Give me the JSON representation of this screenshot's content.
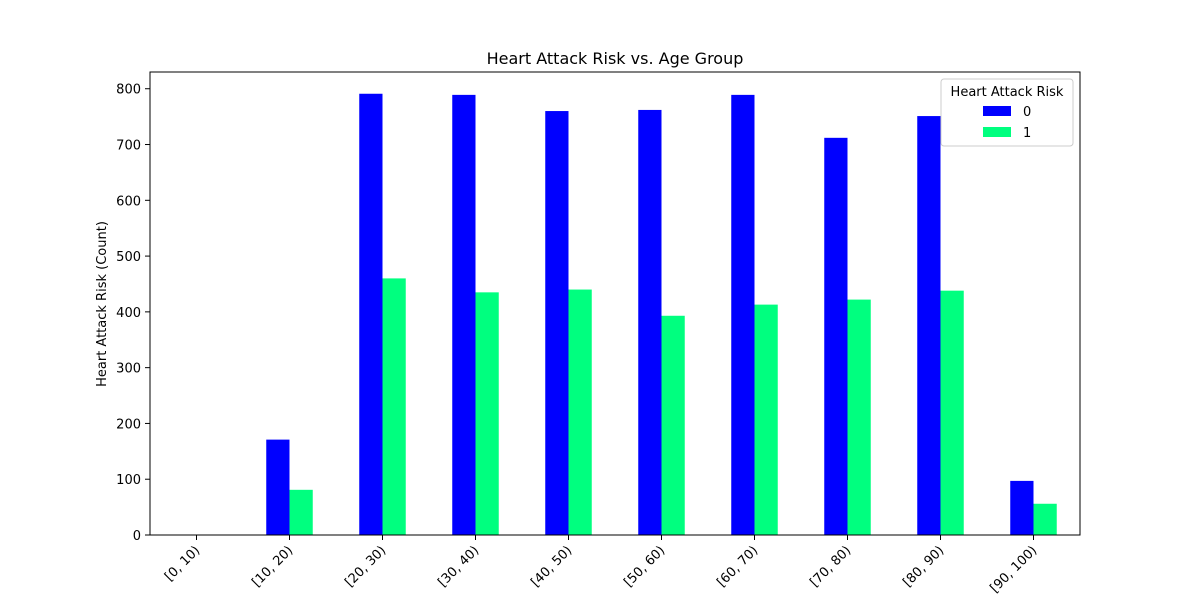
{
  "chart_data": {
    "type": "bar",
    "title": "Heart Attack Risk vs. Age Group",
    "xlabel": "",
    "ylabel": "Heart Attack Risk (Count)",
    "categories": [
      "[0, 10)",
      "[10, 20)",
      "[20, 30)",
      "[30, 40)",
      "[40, 50)",
      "[50, 60)",
      "[60, 70)",
      "[70, 80)",
      "[80, 90)",
      "[90, 100)"
    ],
    "series": [
      {
        "name": "0",
        "color": "#0000ff",
        "values": [
          0,
          171,
          791,
          789,
          760,
          762,
          789,
          712,
          751,
          97
        ]
      },
      {
        "name": "1",
        "color": "#00ff7f",
        "values": [
          0,
          81,
          460,
          435,
          440,
          393,
          413,
          422,
          438,
          56
        ]
      }
    ],
    "ylim": [
      0,
      830
    ],
    "yticks": [
      0,
      100,
      200,
      300,
      400,
      500,
      600,
      700,
      800
    ],
    "legend": {
      "title": "Heart Attack Risk",
      "placement": "top-right"
    },
    "grid": false
  }
}
